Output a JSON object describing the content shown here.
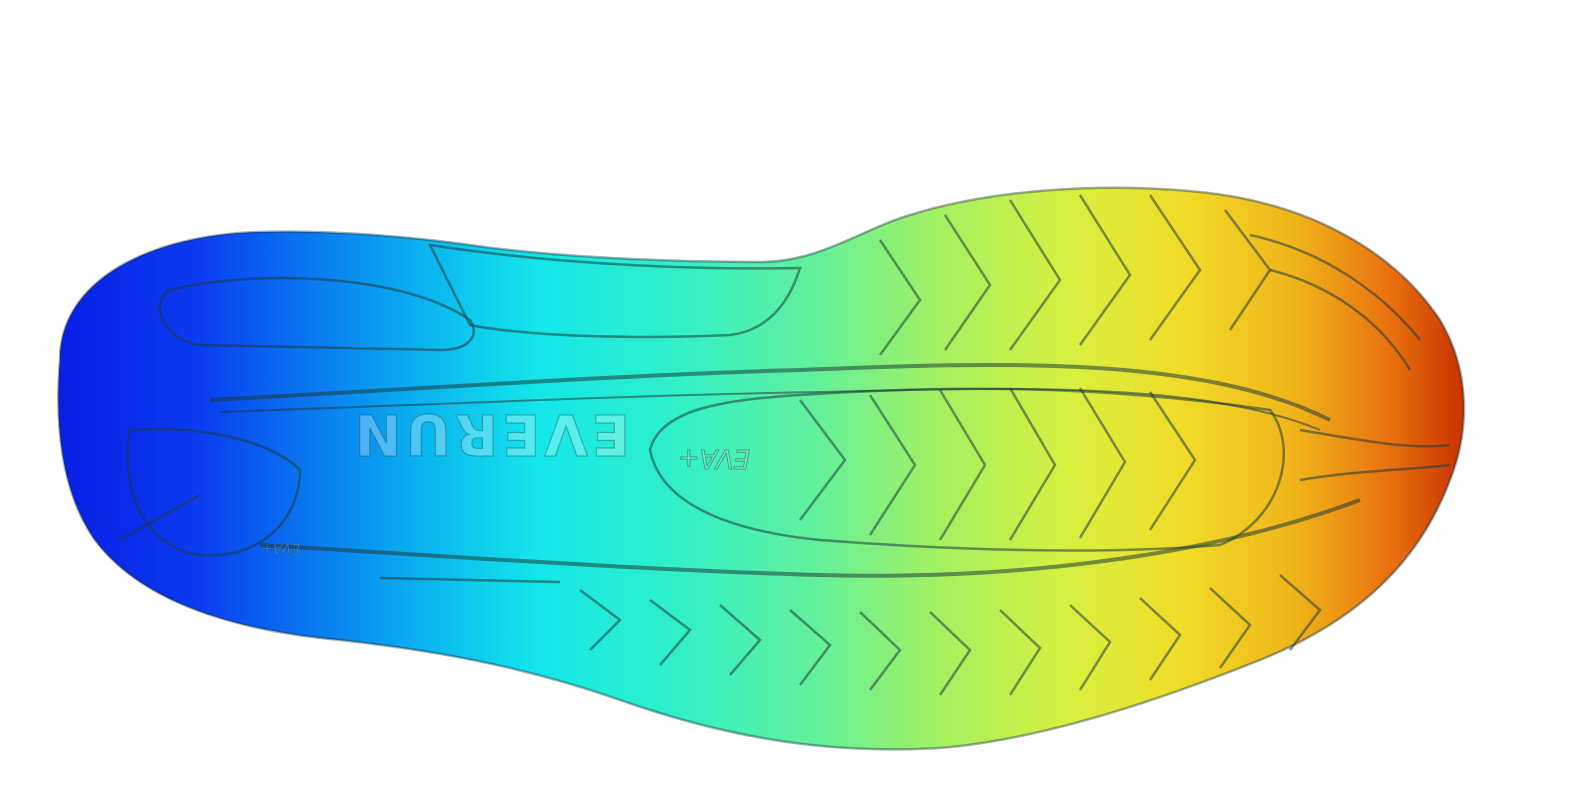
{
  "image": {
    "subject": "shoe outsole heatmap",
    "background": "#ffffff"
  },
  "outsole": {
    "wordmark": "EVERUN",
    "midfoot_mark": "EVA+",
    "heel_mark": "EVA+"
  },
  "colormap": {
    "stops": [
      "#0a1ee6",
      "#0a64f0",
      "#0aa0f0",
      "#14dce6",
      "#2af0d0",
      "#5af0a0",
      "#9cf064",
      "#d8f03c",
      "#f0d21e",
      "#f0a014",
      "#e05a0a",
      "#c83200"
    ]
  }
}
